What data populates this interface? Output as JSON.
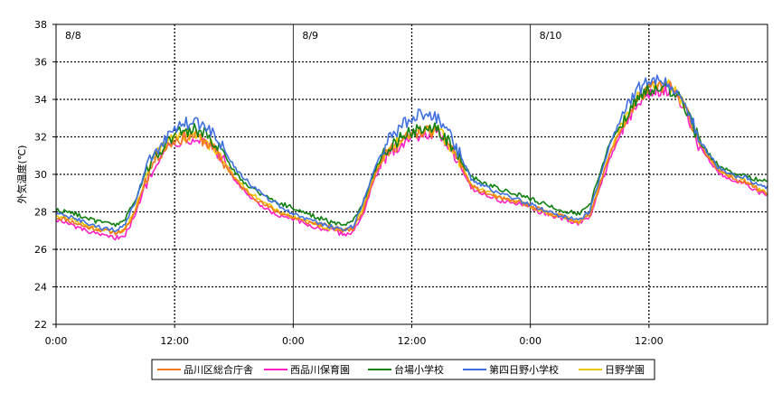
{
  "chart_data": {
    "type": "line",
    "title": "",
    "ylabel": "外気温度(℃)",
    "xlabel": "",
    "ylim": [
      22,
      38
    ],
    "yticks": [
      22,
      24,
      26,
      28,
      30,
      32,
      34,
      36,
      38
    ],
    "xlim_hours": [
      0,
      72
    ],
    "xticks": [
      {
        "h": 0,
        "label": "0:00"
      },
      {
        "h": 12,
        "label": "12:00"
      },
      {
        "h": 24,
        "label": "0:00"
      },
      {
        "h": 36,
        "label": "12:00"
      },
      {
        "h": 48,
        "label": "0:00"
      },
      {
        "h": 60,
        "label": "12:00"
      }
    ],
    "day_labels": [
      {
        "h": 0,
        "label": "8/8"
      },
      {
        "h": 24,
        "label": "8/9"
      },
      {
        "h": 48,
        "label": "8/10"
      }
    ],
    "grid": {
      "horizontal": "dotted",
      "vertical_noon": "dotted",
      "vertical_midnight": "solid"
    },
    "legend_position": "bottom",
    "series": [
      {
        "name": "品川区総合庁舎",
        "color": "#f07820",
        "x": [
          0,
          1,
          2,
          3,
          4,
          5,
          6,
          7,
          8,
          9,
          10,
          11,
          12,
          13,
          14,
          15,
          16,
          17,
          18,
          19,
          20,
          21,
          22,
          23,
          24,
          25,
          26,
          27,
          28,
          29,
          30,
          31,
          32,
          33,
          34,
          35,
          36,
          37,
          38,
          39,
          40,
          41,
          42,
          43,
          44,
          45,
          46,
          47,
          48,
          49,
          50,
          51,
          52,
          53,
          54,
          55,
          56,
          57,
          58,
          59,
          60,
          61,
          62,
          63,
          64,
          65,
          66,
          67,
          68,
          69,
          70,
          71,
          72
        ],
        "y": [
          27.7,
          27.6,
          27.4,
          27.2,
          27.1,
          27.0,
          26.9,
          27.0,
          28.0,
          29.6,
          30.8,
          31.4,
          31.8,
          32.0,
          32.1,
          31.8,
          31.3,
          30.6,
          29.8,
          29.2,
          28.8,
          28.4,
          28.1,
          27.9,
          27.7,
          27.5,
          27.4,
          27.3,
          27.2,
          27.0,
          27.1,
          28.0,
          29.6,
          30.8,
          31.4,
          31.8,
          32.1,
          32.3,
          32.3,
          32.1,
          31.5,
          30.5,
          29.4,
          29.1,
          28.9,
          28.7,
          28.6,
          28.5,
          28.3,
          28.1,
          27.9,
          27.8,
          27.6,
          27.5,
          27.8,
          29.4,
          31.0,
          32.2,
          33.2,
          34.1,
          34.6,
          34.7,
          34.7,
          34.2,
          33.2,
          31.8,
          30.9,
          30.2,
          29.9,
          29.7,
          29.6,
          29.2,
          29.0
        ]
      },
      {
        "name": "西品川保育園",
        "color": "#ff20c8",
        "x": [
          0,
          1,
          2,
          3,
          4,
          5,
          6,
          7,
          8,
          9,
          10,
          11,
          12,
          13,
          14,
          15,
          16,
          17,
          18,
          19,
          20,
          21,
          22,
          23,
          24,
          25,
          26,
          27,
          28,
          29,
          30,
          31,
          32,
          33,
          34,
          35,
          36,
          37,
          38,
          39,
          40,
          41,
          42,
          43,
          44,
          45,
          46,
          47,
          48,
          49,
          50,
          51,
          52,
          53,
          54,
          55,
          56,
          57,
          58,
          59,
          60,
          61,
          62,
          63,
          64,
          65,
          66,
          67,
          68,
          69,
          70,
          71,
          72
        ],
        "y": [
          27.6,
          27.4,
          27.2,
          27.0,
          26.8,
          26.7,
          26.6,
          26.8,
          27.8,
          29.4,
          30.6,
          31.3,
          31.7,
          31.9,
          32.0,
          31.8,
          31.4,
          30.7,
          29.8,
          29.1,
          28.6,
          28.2,
          27.9,
          27.7,
          27.6,
          27.4,
          27.2,
          27.1,
          27.0,
          26.8,
          26.9,
          27.8,
          29.4,
          30.6,
          31.3,
          31.7,
          32.0,
          32.2,
          32.2,
          32.0,
          31.4,
          30.4,
          29.3,
          29.0,
          28.8,
          28.6,
          28.5,
          28.4,
          28.2,
          28.0,
          27.8,
          27.7,
          27.5,
          27.4,
          27.7,
          29.2,
          30.8,
          32.0,
          33.0,
          33.8,
          34.3,
          34.5,
          34.5,
          34.0,
          33.0,
          31.6,
          30.8,
          30.1,
          29.8,
          29.6,
          29.5,
          29.0,
          28.9
        ]
      },
      {
        "name": "台場小学校",
        "color": "#108010",
        "x": [
          0,
          1,
          2,
          3,
          4,
          5,
          6,
          7,
          8,
          9,
          10,
          11,
          12,
          13,
          14,
          15,
          16,
          17,
          18,
          19,
          20,
          21,
          22,
          23,
          24,
          25,
          26,
          27,
          28,
          29,
          30,
          31,
          32,
          33,
          34,
          35,
          36,
          37,
          38,
          39,
          40,
          41,
          42,
          43,
          44,
          45,
          46,
          47,
          48,
          49,
          50,
          51,
          52,
          53,
          54,
          55,
          56,
          57,
          58,
          59,
          60,
          61,
          62,
          63,
          64,
          65,
          66,
          67,
          68,
          69,
          70,
          71,
          72
        ],
        "y": [
          28.1,
          28.0,
          27.9,
          27.7,
          27.5,
          27.4,
          27.3,
          27.6,
          28.6,
          30.0,
          31.0,
          31.6,
          32.1,
          32.3,
          32.4,
          32.2,
          31.7,
          31.0,
          30.2,
          29.6,
          29.2,
          28.9,
          28.6,
          28.4,
          28.2,
          28.0,
          27.8,
          27.6,
          27.4,
          27.3,
          27.5,
          28.4,
          29.9,
          31.0,
          31.6,
          32.0,
          32.3,
          32.5,
          32.5,
          32.2,
          31.6,
          30.7,
          29.9,
          29.6,
          29.4,
          29.2,
          29.0,
          28.9,
          28.7,
          28.5,
          28.3,
          28.1,
          28.0,
          27.9,
          28.3,
          30.0,
          31.6,
          32.6,
          33.4,
          34.2,
          34.5,
          34.6,
          34.6,
          34.1,
          33.2,
          31.9,
          31.1,
          30.5,
          30.2,
          30.0,
          29.9,
          29.7,
          29.7
        ]
      },
      {
        "name": "第四日野小学校",
        "color": "#4070e0",
        "x": [
          0,
          1,
          2,
          3,
          4,
          5,
          6,
          7,
          8,
          9,
          10,
          11,
          12,
          13,
          14,
          15,
          16,
          17,
          18,
          19,
          20,
          21,
          22,
          23,
          24,
          25,
          26,
          27,
          28,
          29,
          30,
          31,
          32,
          33,
          34,
          35,
          36,
          37,
          38,
          39,
          40,
          41,
          42,
          43,
          44,
          45,
          46,
          47,
          48,
          49,
          50,
          51,
          52,
          53,
          54,
          55,
          56,
          57,
          58,
          59,
          60,
          61,
          62,
          63,
          64,
          65,
          66,
          67,
          68,
          69,
          70,
          71,
          72
        ],
        "y": [
          27.9,
          27.8,
          27.6,
          27.4,
          27.2,
          27.1,
          27.0,
          27.3,
          28.5,
          30.2,
          31.2,
          31.9,
          32.4,
          32.7,
          32.8,
          32.6,
          32.1,
          31.3,
          30.4,
          29.8,
          29.3,
          28.9,
          28.5,
          28.2,
          27.9,
          27.7,
          27.5,
          27.3,
          27.2,
          27.0,
          27.2,
          28.3,
          30.0,
          31.3,
          32.1,
          32.6,
          33.0,
          33.2,
          33.1,
          32.8,
          32.0,
          30.9,
          29.8,
          29.4,
          29.2,
          29.0,
          28.8,
          28.6,
          28.4,
          28.2,
          28.0,
          27.8,
          27.7,
          27.6,
          28.0,
          29.8,
          31.6,
          32.8,
          33.8,
          34.6,
          34.9,
          35.0,
          34.9,
          34.4,
          33.4,
          31.9,
          31.1,
          30.4,
          30.0,
          29.9,
          29.8,
          29.4,
          29.3
        ]
      },
      {
        "name": "日野学園",
        "color": "#f0c800",
        "x": [
          0,
          1,
          2,
          3,
          4,
          5,
          6,
          7,
          8,
          9,
          10,
          11,
          12,
          13,
          14,
          15,
          16,
          17,
          18,
          19,
          20,
          21,
          22,
          23,
          24,
          25,
          26,
          27,
          28,
          29,
          30,
          31,
          32,
          33,
          34,
          35,
          36,
          37,
          38,
          39,
          40,
          41,
          42,
          43,
          44,
          45,
          46,
          47,
          48,
          49,
          50,
          51,
          52,
          53,
          54,
          55,
          56,
          57,
          58,
          59,
          60,
          61,
          62,
          63,
          64,
          65,
          66,
          67,
          68,
          69,
          70,
          71,
          72
        ],
        "y": [
          27.8,
          27.7,
          27.5,
          27.3,
          27.1,
          27.0,
          26.9,
          27.1,
          28.1,
          29.7,
          30.9,
          31.5,
          31.9,
          32.1,
          32.2,
          31.9,
          31.4,
          30.7,
          29.9,
          29.3,
          28.9,
          28.5,
          28.2,
          27.9,
          27.7,
          27.5,
          27.4,
          27.2,
          27.1,
          27.0,
          27.1,
          28.1,
          29.7,
          30.9,
          31.5,
          31.9,
          32.2,
          32.4,
          32.3,
          32.1,
          31.5,
          30.5,
          29.5,
          29.2,
          29.0,
          28.8,
          28.6,
          28.5,
          28.3,
          28.1,
          27.9,
          27.8,
          27.6,
          27.5,
          27.9,
          29.5,
          31.1,
          32.3,
          33.3,
          34.2,
          34.6,
          34.7,
          34.7,
          34.2,
          33.2,
          31.8,
          31.0,
          30.3,
          30.0,
          29.8,
          29.6,
          29.2,
          29.0
        ]
      }
    ]
  }
}
